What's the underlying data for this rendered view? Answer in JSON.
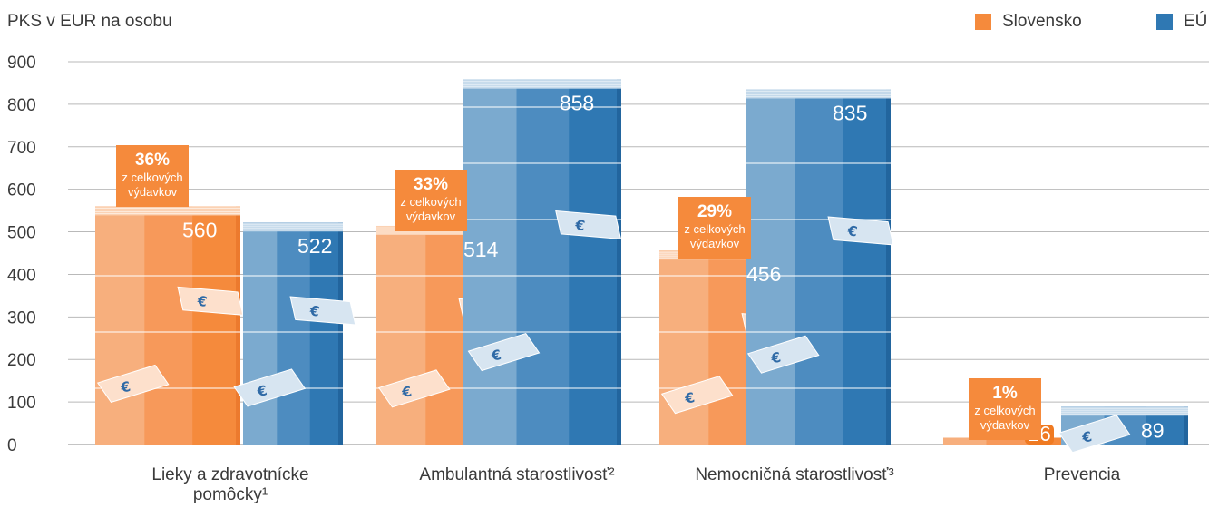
{
  "chart_data": {
    "type": "bar",
    "ylabel": "PKS v EUR na osobu",
    "ylim": [
      0,
      900
    ],
    "yticks": [
      "0",
      "100",
      "200",
      "300",
      "400",
      "500",
      "600",
      "700",
      "800",
      "900"
    ],
    "categories": [
      "Lieky a zdravotnícke pomôcky¹",
      "Ambulantná starostlivosť²",
      "Nemocničná starostlivosť³",
      "Prevencia"
    ],
    "series": [
      {
        "name": "Slovensko",
        "color": "#f58a3c",
        "values": [
          560,
          514,
          456,
          16
        ],
        "labels": [
          "560",
          "514",
          "456",
          "16"
        ]
      },
      {
        "name": "EÚ",
        "color": "#2f78b3",
        "values": [
          522,
          858,
          835,
          89
        ],
        "labels": [
          "522",
          "858",
          "835",
          "89"
        ]
      }
    ],
    "share_badges": [
      {
        "pct": "36%",
        "line1": "z celkových",
        "line2": "výdavkov"
      },
      {
        "pct": "33%",
        "line1": "z celkových",
        "line2": "výdavkov"
      },
      {
        "pct": "29%",
        "line1": "z celkových",
        "line2": "výdavkov"
      },
      {
        "pct": "1%",
        "line1": "z celkových",
        "line2": "výdavkov"
      }
    ],
    "legend_position": "top-right",
    "grid": true
  }
}
